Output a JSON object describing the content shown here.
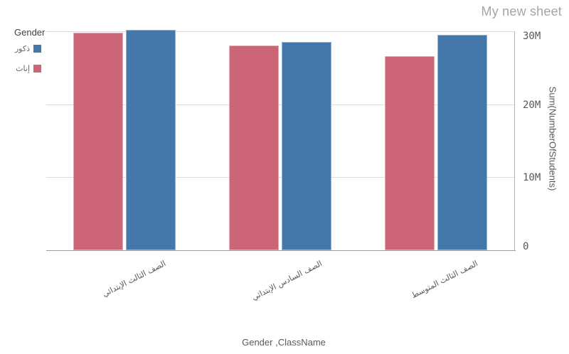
{
  "sheet": {
    "title": "My new sheet"
  },
  "chart_data": {
    "type": "bar",
    "title": "",
    "legend_title": "Gender",
    "legend_position": "top-left",
    "grid": true,
    "direction": "rtl",
    "unit": "M (millions of students)",
    "categories": [
      "الصف الثالث الإبتدائي",
      "الصف السادس الإبتدائي",
      "الصف الثالث المتوسط"
    ],
    "series": [
      {
        "name": "ذكور",
        "color": "#4477aa",
        "values": [
          30.2,
          28.5,
          29.5
        ]
      },
      {
        "name": "إناث",
        "color": "#cc6677",
        "values": [
          29.8,
          28.1,
          26.6
        ]
      }
    ],
    "xlabel": "Gender ,ClassName",
    "ylabel": "Sum(NumberOfStudents)",
    "ylim": [
      0,
      30.6
    ],
    "yticks": [
      {
        "value": 0,
        "label": "0"
      },
      {
        "value": 10,
        "label": "10M"
      },
      {
        "value": 20,
        "label": "20M"
      },
      {
        "value": 30,
        "label": "30M"
      }
    ]
  }
}
